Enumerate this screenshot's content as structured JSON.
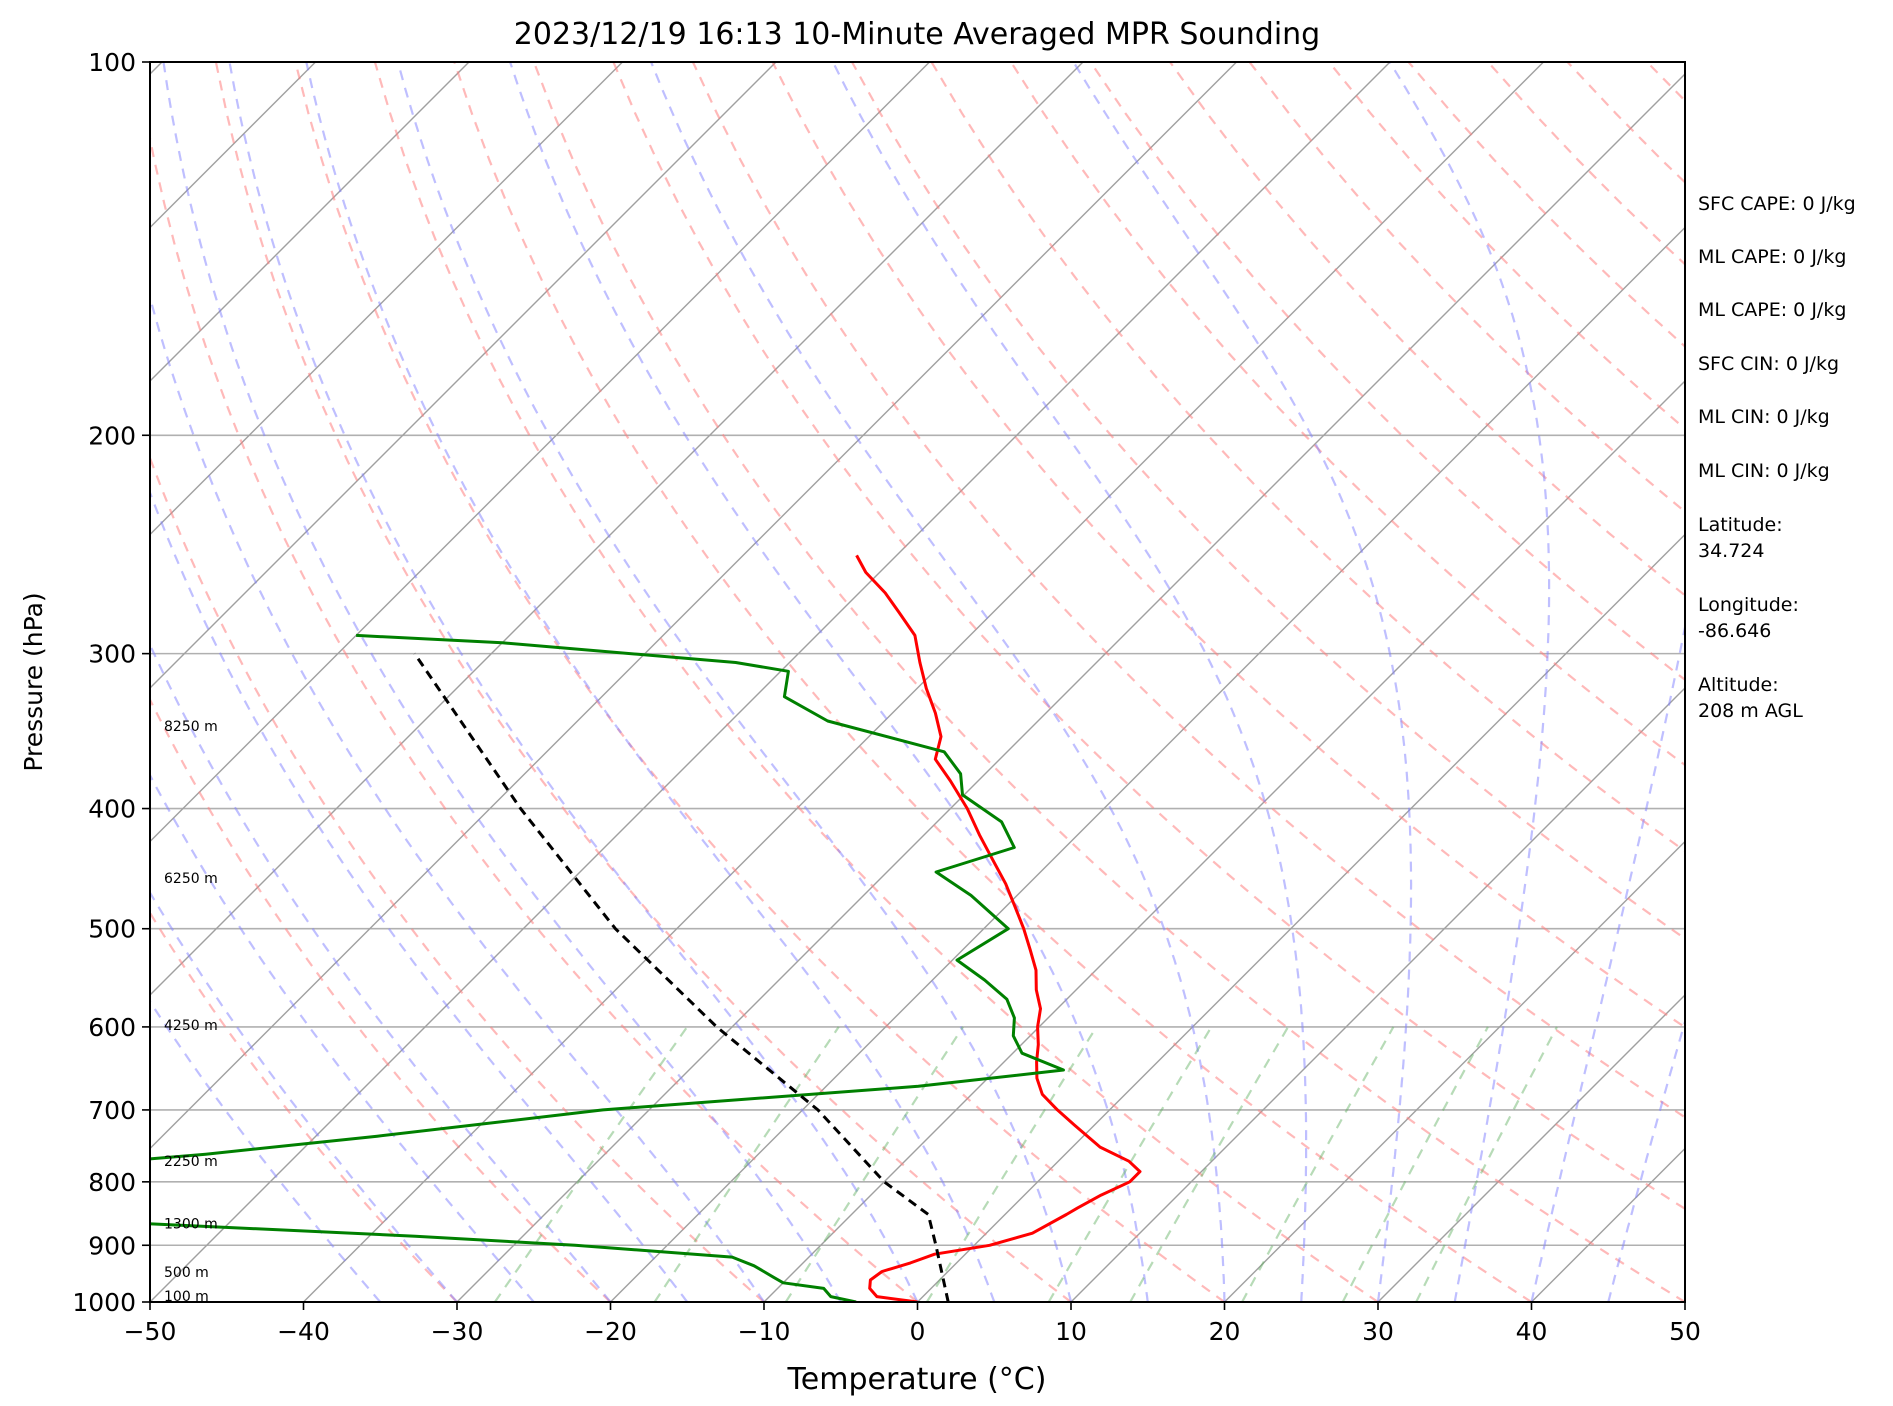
{
  "chart_data": {
    "type": "line",
    "title": "2023/12/19 16:13 10-Minute Averaged MPR Sounding",
    "xlabel": "Temperature (°C)",
    "ylabel": "Pressure (hPa)",
    "xlim": [
      -50,
      50
    ],
    "ylim": [
      1000,
      100
    ],
    "y_scale": "log",
    "skew": "skew-T",
    "grid": true,
    "x_ticks": [
      -50,
      -40,
      -30,
      -20,
      -10,
      0,
      10,
      20,
      30,
      40,
      50
    ],
    "x_tick_labels": [
      "−50",
      "−40",
      "−30",
      "−20",
      "−10",
      "0",
      "10",
      "20",
      "30",
      "40",
      "50"
    ],
    "y_ticks": [
      100,
      200,
      300,
      400,
      500,
      600,
      700,
      800,
      900,
      1000
    ],
    "y_tick_labels": [
      "100",
      "200",
      "300",
      "400",
      "500",
      "600",
      "700",
      "800",
      "900",
      "1000"
    ],
    "series": [
      {
        "id": "temperature",
        "color": "#ff0000",
        "style": "solid",
        "points": [
          [
            1000,
            0.0
          ],
          [
            990,
            -3.0
          ],
          [
            975,
            -4.0
          ],
          [
            960,
            -4.5
          ],
          [
            945,
            -4.3
          ],
          [
            930,
            -3.0
          ],
          [
            915,
            -2.0
          ],
          [
            900,
            1.0
          ],
          [
            880,
            3.0
          ],
          [
            850,
            4.0
          ],
          [
            840,
            4.3
          ],
          [
            820,
            5.0
          ],
          [
            800,
            6.0
          ],
          [
            785,
            6.0
          ],
          [
            770,
            4.6
          ],
          [
            750,
            1.8
          ],
          [
            720,
            -1.3
          ],
          [
            700,
            -3.4
          ],
          [
            680,
            -5.4
          ],
          [
            660,
            -6.8
          ],
          [
            640,
            -7.9
          ],
          [
            620,
            -8.9
          ],
          [
            600,
            -10.1
          ],
          [
            580,
            -11.1
          ],
          [
            560,
            -12.6
          ],
          [
            540,
            -13.9
          ],
          [
            520,
            -15.6
          ],
          [
            500,
            -17.4
          ],
          [
            480,
            -19.4
          ],
          [
            460,
            -21.5
          ],
          [
            440,
            -23.9
          ],
          [
            420,
            -26.4
          ],
          [
            400,
            -28.9
          ],
          [
            380,
            -31.8
          ],
          [
            365,
            -34.2
          ],
          [
            350,
            -35.3
          ],
          [
            335,
            -37.2
          ],
          [
            320,
            -39.4
          ],
          [
            305,
            -41.5
          ],
          [
            290,
            -43.6
          ],
          [
            278,
            -46.1
          ],
          [
            268,
            -48.3
          ],
          [
            258,
            -50.9
          ],
          [
            250,
            -52.6
          ]
        ]
      },
      {
        "id": "dewpoint",
        "color": "#008000",
        "style": "solid",
        "points": [
          [
            1000,
            -4.0
          ],
          [
            990,
            -6.0
          ],
          [
            975,
            -7.0
          ],
          [
            965,
            -10.0
          ],
          [
            955,
            -11.0
          ],
          [
            945,
            -12.0
          ],
          [
            935,
            -13.0
          ],
          [
            920,
            -15.0
          ],
          [
            900,
            -26.0
          ],
          [
            885,
            -37.0
          ],
          [
            865,
            -55.0
          ],
          [
            850,
            -66.0
          ],
          [
            780,
            -66.0
          ],
          [
            760,
            -56.0
          ],
          [
            735,
            -46.0
          ],
          [
            700,
            -33.0
          ],
          [
            670,
            -14.0
          ],
          [
            650,
            -5.6
          ],
          [
            630,
            -9.4
          ],
          [
            610,
            -11.1
          ],
          [
            590,
            -12.2
          ],
          [
            570,
            -13.9
          ],
          [
            550,
            -16.6
          ],
          [
            530,
            -19.7
          ],
          [
            500,
            -18.4
          ],
          [
            470,
            -23.0
          ],
          [
            450,
            -26.8
          ],
          [
            430,
            -23.3
          ],
          [
            410,
            -25.8
          ],
          [
            390,
            -30.1
          ],
          [
            375,
            -31.6
          ],
          [
            360,
            -34.1
          ],
          [
            340,
            -43.7
          ],
          [
            325,
            -48.1
          ],
          [
            310,
            -49.5
          ],
          [
            305,
            -53.5
          ],
          [
            294,
            -70.0
          ],
          [
            290,
            -80.0
          ]
        ]
      },
      {
        "id": "parcel",
        "color": "#000000",
        "style": "dashed",
        "points": [
          [
            1000,
            2.0
          ],
          [
            900,
            -2.5
          ],
          [
            850,
            -5.0
          ],
          [
            800,
            -10.0
          ],
          [
            700,
            -19.0
          ],
          [
            600,
            -31.0
          ],
          [
            500,
            -44.0
          ],
          [
            400,
            -58.0
          ],
          [
            300,
            -75.0
          ]
        ]
      }
    ],
    "height_annotations": [
      {
        "label": "100 m",
        "p": 989
      },
      {
        "label": "500 m",
        "p": 946
      },
      {
        "label": "1300 m",
        "p": 864
      },
      {
        "label": "2250 m",
        "p": 770
      },
      {
        "label": "4250 m",
        "p": 598
      },
      {
        "label": "6250 m",
        "p": 455
      },
      {
        "label": "8250 m",
        "p": 343
      }
    ],
    "reference_lines": {
      "dry_adiabats": {
        "color": "#ff8080",
        "style": "dashed"
      },
      "moist_adiabats": {
        "color": "#8080ff",
        "style": "dashed"
      },
      "mixing_ratio": {
        "color": "#80c080",
        "style": "dashed"
      },
      "isotherms": {
        "color": "#a0a0a0",
        "style": "solid"
      }
    }
  },
  "info_panel": {
    "sfc_cape": "SFC CAPE: 0 J/kg",
    "ml_cape_1": "ML CAPE: 0 J/kg",
    "ml_cape_2": "ML CAPE: 0 J/kg",
    "sfc_cin": "SFC CIN: 0 J/kg",
    "ml_cin_1": "ML CIN: 0 J/kg",
    "ml_cin_2": "ML CIN: 0 J/kg",
    "latitude_label": "Latitude:",
    "latitude_value": "34.724",
    "longitude_label": "Longitude:",
    "longitude_value": "-86.646",
    "altitude_label": "Altitude:",
    "altitude_value": "208 m AGL"
  }
}
